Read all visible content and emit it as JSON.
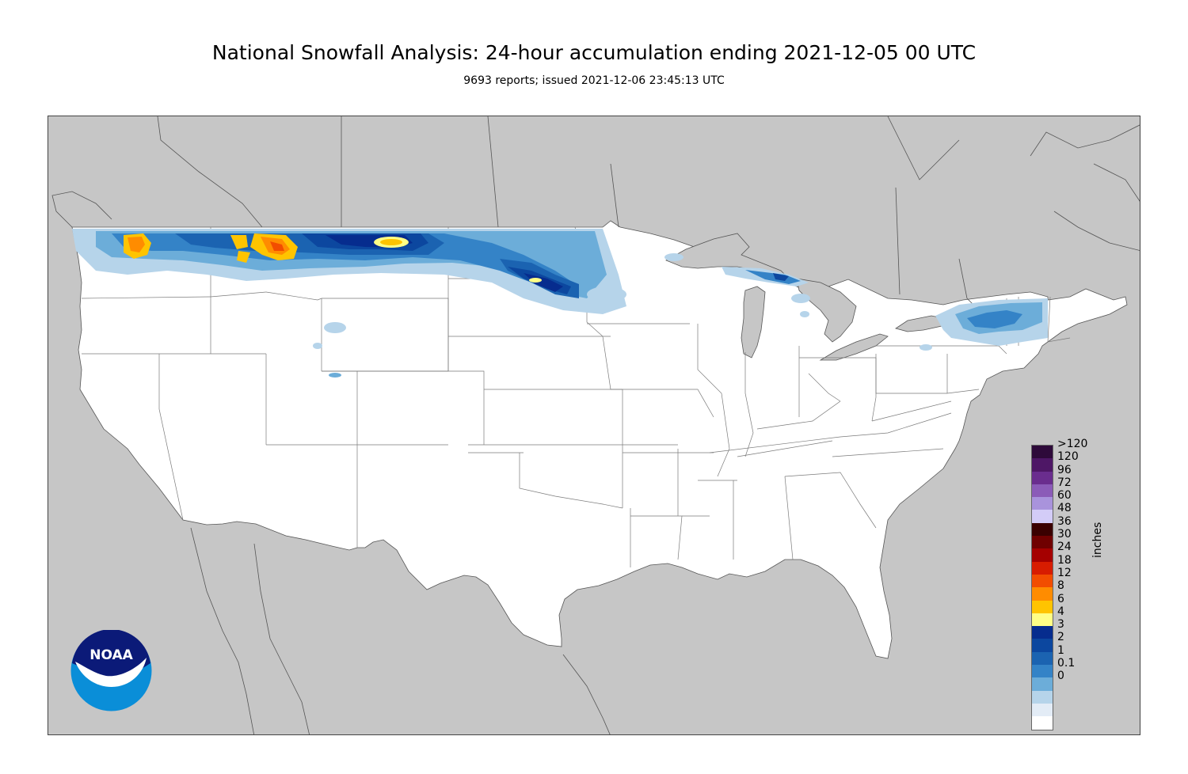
{
  "header": {
    "title": "National Snowfall Analysis: 24-hour accumulation ending 2021-12-05 00 UTC",
    "subtitle": "9693 reports; issued 2021-12-06 23:45:13 UTC"
  },
  "colors": {
    "ocean_land_background": "#c6c6c6",
    "analysis_land": "#ffffff",
    "boundary": "#7a7a7a"
  },
  "legend": {
    "units": "inches",
    "items": [
      {
        "label": ">120",
        "color": "#2e0a3a"
      },
      {
        "label": "120",
        "color": "#4e1766"
      },
      {
        "label": "96",
        "color": "#6a2d8e"
      },
      {
        "label": "72",
        "color": "#8b5bb8"
      },
      {
        "label": "60",
        "color": "#a993dc"
      },
      {
        "label": "48",
        "color": "#d3ccf7"
      },
      {
        "label": "36",
        "color": "#3a0000"
      },
      {
        "label": "30",
        "color": "#700000"
      },
      {
        "label": "24",
        "color": "#a50000"
      },
      {
        "label": "18",
        "color": "#d71c00"
      },
      {
        "label": "12",
        "color": "#f24d00"
      },
      {
        "label": "8",
        "color": "#ff8c00"
      },
      {
        "label": "6",
        "color": "#ffc400"
      },
      {
        "label": "4",
        "color": "#fffe86"
      },
      {
        "label": "3",
        "color": "#062c8e"
      },
      {
        "label": "2",
        "color": "#0c479f"
      },
      {
        "label": "1",
        "color": "#1b63b1"
      },
      {
        "label": "0.1",
        "color": "#3483c7"
      },
      {
        "label": "0",
        "color": "#6cadd9"
      },
      {
        "label": "",
        "color": "#b6d4ea"
      },
      {
        "label": "",
        "color": "#e3ecf6"
      },
      {
        "label": "",
        "color": "#ffffff"
      }
    ]
  },
  "logo": {
    "text": "NOAA",
    "colors": {
      "dark": "#0b1a78",
      "light": "#0a8ed8"
    }
  }
}
